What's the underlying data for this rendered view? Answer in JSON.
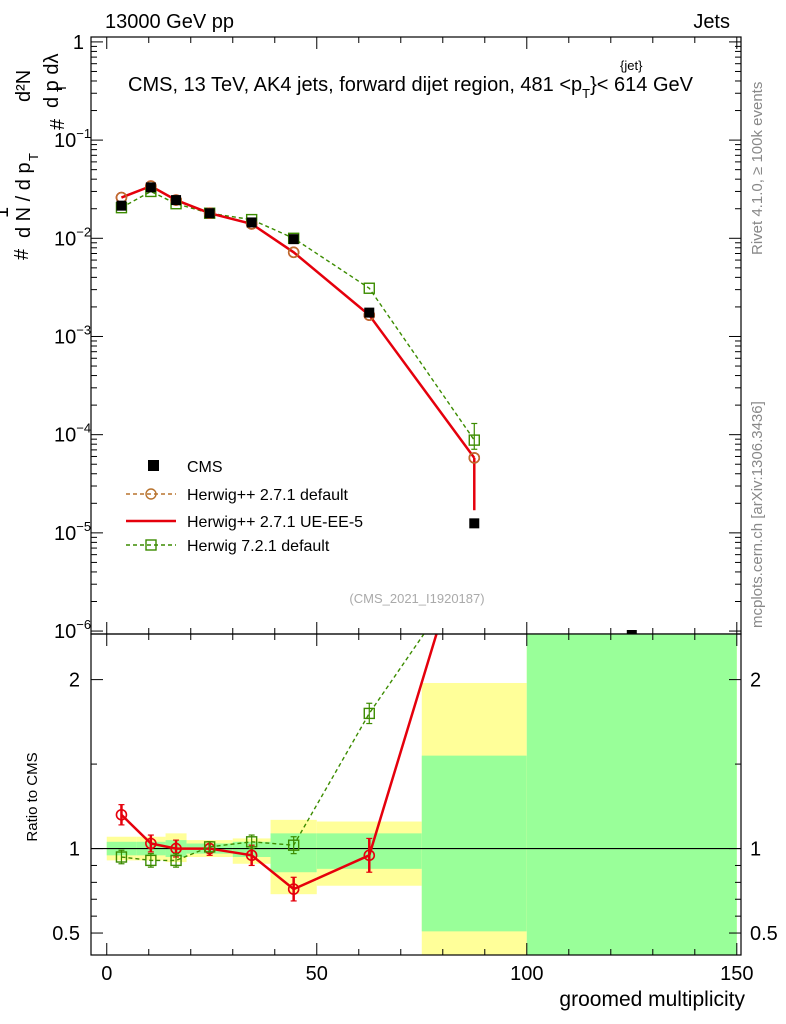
{
  "header": {
    "left": "13000 GeV pp",
    "right": "Jets"
  },
  "side_labels": {
    "rivet": "Rivet 4.1.0, ≥ 100k events",
    "mcplots": "mcplots.cern.ch [arXiv:1306.3436]"
  },
  "ylabel_main": {
    "one": "1",
    "hash": "#",
    "dN": "d N / d p",
    "T_sub": "T",
    "d2N": "d²N",
    "dpT_dl": "d p  dλ",
    "T_sub2": "T"
  },
  "chart_data": [
    {
      "type": "scatter",
      "title": "CMS, 13 TeV, AK4 jets, forward dijet region, 481 <p",
      "title_sup": "{jet}",
      "title_sub": "T",
      "title_tail": "}< 614 GeV",
      "analysis_id": "(CMS_2021_I1920187)",
      "yscale": "log",
      "xlim": [
        -3.75,
        151
      ],
      "ylim_exp": [
        -6.03,
        0.05
      ],
      "y_ticks": [
        {
          "value": 1,
          "label": "1"
        },
        {
          "value": 0.1,
          "label": "10",
          "exp": "−1"
        },
        {
          "value": 0.01,
          "label": "10",
          "exp": "−2"
        },
        {
          "value": 0.001,
          "label": "10",
          "exp": "−3"
        },
        {
          "value": 0.0001,
          "label": "10",
          "exp": "−4"
        },
        {
          "value": 1e-05,
          "label": "10",
          "exp": "−5"
        },
        {
          "value": 1e-06,
          "label": "10",
          "exp": "−6"
        }
      ],
      "series": [
        {
          "name": "CMS",
          "marker": "filled-square",
          "color": "#000000",
          "x": [
            3.5,
            10.5,
            16.5,
            24.5,
            34.5,
            44.5,
            62.5,
            87.5,
            125
          ],
          "y": [
            0.0215,
            0.033,
            0.0245,
            0.018,
            0.0145,
            0.0098,
            0.00175,
            1.25e-05,
            8.8e-07
          ]
        },
        {
          "name": "Herwig++ 2.7.1 default",
          "marker": "open-circle",
          "color": "#b8732e",
          "dash": true,
          "x": [
            3.5,
            10.5,
            16.5,
            24.5,
            34.5,
            44.5,
            62.5,
            87.5
          ],
          "y": [
            0.026,
            0.034,
            0.0245,
            0.018,
            0.014,
            0.0072,
            0.00165,
            5.8e-05
          ]
        },
        {
          "name": "Herwig++ 2.7.1 UE-EE-5",
          "marker": "open-circle",
          "color": "#e5000c",
          "dash": false,
          "x": [
            3.5,
            10.5,
            16.5,
            24.5,
            34.5,
            44.5,
            62.5,
            87.5
          ],
          "y": [
            0.026,
            0.034,
            0.0245,
            0.018,
            0.014,
            0.0072,
            0.00165,
            5.8e-05
          ],
          "err_at": 87.5,
          "err_lo": 1.7e-05
        },
        {
          "name": "Herwig 7.2.1 default",
          "marker": "open-square",
          "color": "#3c8c00",
          "dash": true,
          "x": [
            3.5,
            10.5,
            16.5,
            24.5,
            34.5,
            44.5,
            62.5,
            87.5
          ],
          "y": [
            0.0205,
            0.03,
            0.0225,
            0.018,
            0.0155,
            0.01,
            0.0031,
            8.8e-05
          ],
          "err_at": 87.5,
          "err_lo": 7.1e-05,
          "err_hi": 0.00013
        }
      ]
    },
    {
      "type": "scatter",
      "ylabel": "Ratio to CMS",
      "xlabel": "groomed multiplicity",
      "xlim": [
        -3.75,
        151
      ],
      "ylim": [
        0.37,
        2.27
      ],
      "x_ticks": [
        0,
        50,
        100,
        150
      ],
      "y_ticks": [
        0.5,
        1,
        2
      ],
      "reference": 1,
      "bands": [
        {
          "x0": 0,
          "x1": 7,
          "g_lo": 0.96,
          "g_hi": 1.04,
          "y_lo": 0.93,
          "y_hi": 1.07
        },
        {
          "x0": 7,
          "x1": 14,
          "g_lo": 0.96,
          "g_hi": 1.04,
          "y_lo": 0.93,
          "y_hi": 1.07
        },
        {
          "x0": 14,
          "x1": 19,
          "g_lo": 0.95,
          "g_hi": 1.05,
          "y_lo": 0.92,
          "y_hi": 1.09
        },
        {
          "x0": 19,
          "x1": 30,
          "g_lo": 0.97,
          "g_hi": 1.03,
          "y_lo": 0.95,
          "y_hi": 1.05
        },
        {
          "x0": 30,
          "x1": 39,
          "g_lo": 0.95,
          "g_hi": 1.04,
          "y_lo": 0.91,
          "y_hi": 1.06
        },
        {
          "x0": 39,
          "x1": 50,
          "g_lo": 0.86,
          "g_hi": 1.09,
          "y_lo": 0.73,
          "y_hi": 1.17
        },
        {
          "x0": 50,
          "x1": 75,
          "g_lo": 0.88,
          "g_hi": 1.09,
          "y_lo": 0.78,
          "y_hi": 1.16
        },
        {
          "x0": 75,
          "x1": 100,
          "g_lo": 0.51,
          "g_hi": 1.55,
          "y_lo": 0.37,
          "y_hi": 1.98
        },
        {
          "x0": 100,
          "x1": 150,
          "g_lo": 0.37,
          "g_hi": 2.27,
          "y_lo": 0.37,
          "y_hi": 2.27
        }
      ],
      "series": [
        {
          "name": "Herwig++ 2.7.1 UE-EE-5",
          "marker": "open-circle",
          "color": "#e5000c",
          "x": [
            3.5,
            10.5,
            16.5,
            24.5,
            34.5,
            44.5,
            62.5,
            78.5
          ],
          "y": [
            1.2,
            1.03,
            1.0,
            1.0,
            0.96,
            0.76,
            0.96,
            2.27
          ],
          "err": [
            0.06,
            0.05,
            0.05,
            0.04,
            0.06,
            0.07,
            0.1,
            0
          ],
          "markers_upto": 7
        },
        {
          "name": "Herwig 7.2.1 default",
          "marker": "open-square",
          "color": "#3c8c00",
          "x": [
            3.5,
            10.5,
            16.5,
            24.5,
            34.5,
            44.5,
            62.5,
            75.5
          ],
          "y": [
            0.95,
            0.93,
            0.93,
            1.01,
            1.04,
            1.02,
            1.8,
            2.27
          ],
          "err": [
            0.04,
            0.04,
            0.04,
            0.03,
            0.04,
            0.05,
            0.06,
            0
          ],
          "markers_upto": 7
        }
      ]
    }
  ]
}
